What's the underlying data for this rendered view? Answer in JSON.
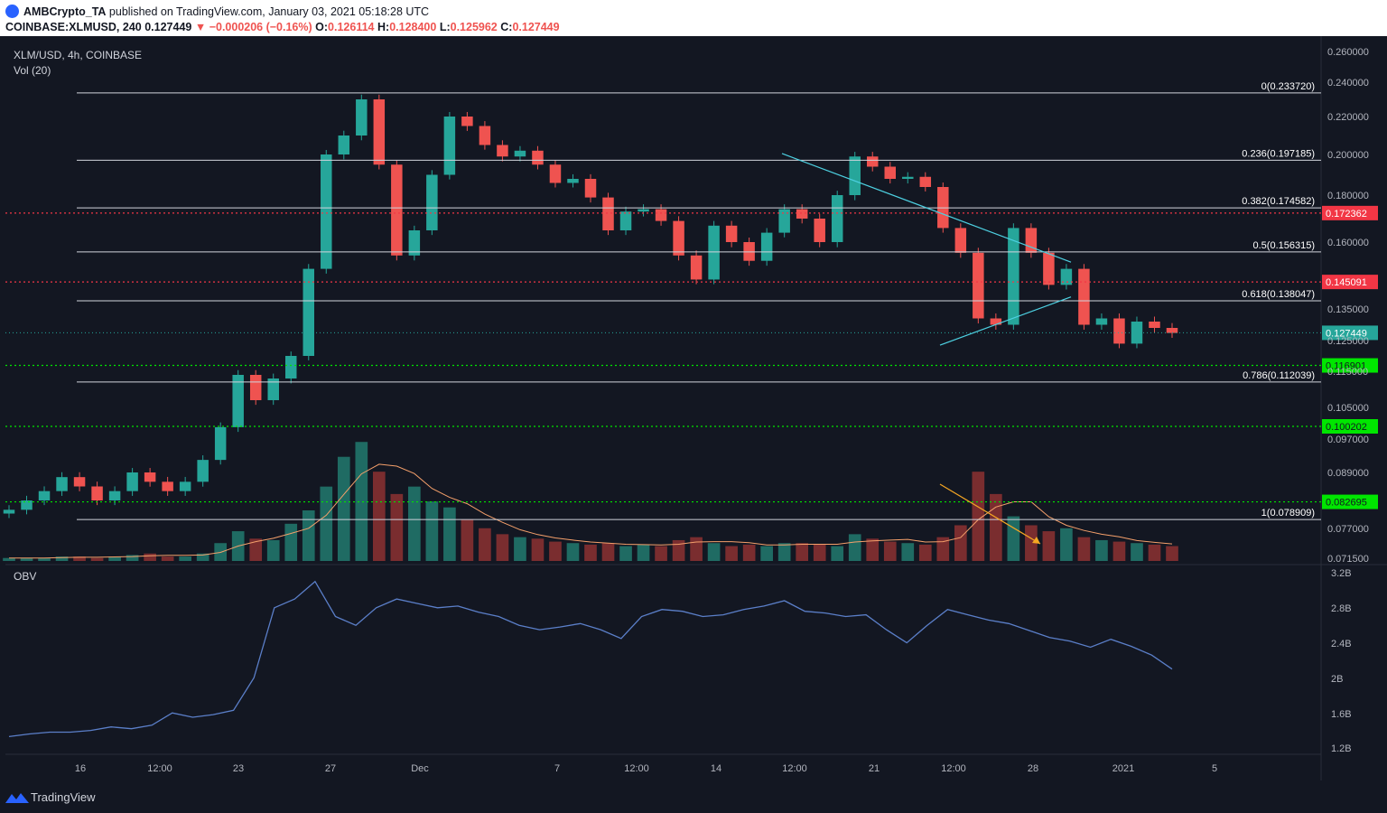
{
  "header": {
    "publisher": "AMBCrypto_TA",
    "published_text": "published on TradingView.com, January 03, 2021 05:18:28 UTC",
    "symbol": "COINBASE:XLMUSD, 240",
    "last": "0.127449",
    "change": "▼ −0.000206 (−0.16%)",
    "o_label": "O:",
    "o": "0.126114",
    "h_label": "H:",
    "h": "0.128400",
    "l_label": "L:",
    "l": "0.125962",
    "c_label": "C:",
    "c": "0.127449"
  },
  "legend": {
    "title": "XLM/USD, 4h, COINBASE",
    "vol": "Vol (20)",
    "obv": "OBV"
  },
  "footer": {
    "logo": "TradingView"
  },
  "colors": {
    "background": "#131722",
    "up": "#26a69a",
    "down": "#ef5350",
    "fib": "#d1d4dc",
    "resistance": "#f23645",
    "support": "#00e600",
    "triangle": "#4dd0e1",
    "arrow": "#f5a623",
    "obv_line": "#5b7fc9",
    "vol_ma": "#f5a06b"
  },
  "chart_data": [
    {
      "type": "candlestick",
      "title": "XLM/USD, 4h, COINBASE",
      "price_axis_ticks": [
        "0.260000",
        "0.240000",
        "0.220000",
        "0.200000",
        "0.180000",
        "0.160000",
        "0.135000",
        "0.125000",
        "0.115000",
        "0.105000",
        "0.097000",
        "0.089000",
        "0.077000",
        "0.071500"
      ],
      "x_axis_ticks": [
        "16",
        "12:00",
        "23",
        "27",
        "Dec",
        "7",
        "12:00",
        "14",
        "12:00",
        "21",
        "12:00",
        "28",
        "2021",
        "5"
      ],
      "fib_levels": [
        {
          "label": "0(0.233720)",
          "value": 0.23372
        },
        {
          "label": "0.236(0.197185)",
          "value": 0.197185
        },
        {
          "label": "0.382(0.174582)",
          "value": 0.174582
        },
        {
          "label": "0.5(0.156315)",
          "value": 0.156315
        },
        {
          "label": "0.618(0.138047)",
          "value": 0.138047
        },
        {
          "label": "0.786(0.112039)",
          "value": 0.112039
        },
        {
          "label": "1(0.078909)",
          "value": 0.078909
        }
      ],
      "horizontal_levels": [
        {
          "label": "0.172362",
          "value": 0.172362,
          "kind": "resistance"
        },
        {
          "label": "0.145091",
          "value": 0.145091,
          "kind": "resistance"
        },
        {
          "label": "0.116901",
          "value": 0.116901,
          "kind": "support"
        },
        {
          "label": "0.100202",
          "value": 0.100202,
          "kind": "support"
        },
        {
          "label": "0.082695",
          "value": 0.082695,
          "kind": "support"
        }
      ],
      "last_price": {
        "label": "0.127449",
        "value": 0.127449
      },
      "series_closes": [
        0.081,
        0.083,
        0.085,
        0.088,
        0.086,
        0.083,
        0.085,
        0.089,
        0.087,
        0.085,
        0.087,
        0.092,
        0.1,
        0.114,
        0.107,
        0.113,
        0.12,
        0.15,
        0.2,
        0.21,
        0.23,
        0.195,
        0.155,
        0.165,
        0.19,
        0.22,
        0.215,
        0.205,
        0.199,
        0.202,
        0.195,
        0.186,
        0.188,
        0.179,
        0.165,
        0.173,
        0.174,
        0.169,
        0.155,
        0.146,
        0.167,
        0.16,
        0.153,
        0.164,
        0.174,
        0.17,
        0.16,
        0.18,
        0.199,
        0.194,
        0.188,
        0.189,
        0.184,
        0.166,
        0.156,
        0.132,
        0.13,
        0.166,
        0.156,
        0.144,
        0.15,
        0.13,
        0.132,
        0.124,
        0.131,
        0.129,
        0.1274
      ]
    },
    {
      "type": "bar",
      "title": "Vol (20)",
      "series": [
        {
          "name": "Vol (20)",
          "values": [
            0.2,
            0.2,
            0.2,
            0.3,
            0.3,
            0.2,
            0.3,
            0.4,
            0.5,
            0.3,
            0.3,
            0.5,
            1.2,
            2.0,
            1.5,
            1.4,
            2.5,
            3.4,
            5.0,
            7.0,
            8.0,
            6.0,
            4.5,
            5.0,
            4.0,
            3.6,
            2.8,
            2.2,
            1.8,
            1.6,
            1.5,
            1.3,
            1.2,
            1.1,
            1.2,
            1.0,
            1.1,
            1.0,
            1.4,
            1.6,
            1.2,
            1.0,
            1.1,
            1.0,
            1.2,
            1.2,
            1.1,
            1.0,
            1.8,
            1.5,
            1.3,
            1.2,
            1.1,
            1.6,
            2.4,
            6.0,
            4.5,
            3.0,
            2.4,
            2.0,
            2.2,
            1.6,
            1.4,
            1.3,
            1.2,
            1.1,
            1.0
          ]
        }
      ]
    },
    {
      "type": "line",
      "title": "OBV",
      "y_axis_ticks": [
        "3.2B",
        "2.8B",
        "2.4B",
        "2B",
        "1.6B",
        "1.2B"
      ],
      "series": [
        {
          "name": "OBV",
          "values": [
            1.33,
            1.36,
            1.38,
            1.38,
            1.4,
            1.44,
            1.42,
            1.46,
            1.6,
            1.55,
            1.58,
            1.63,
            2.0,
            2.8,
            2.9,
            3.1,
            2.7,
            2.6,
            2.8,
            2.9,
            2.85,
            2.8,
            2.82,
            2.75,
            2.7,
            2.6,
            2.55,
            2.58,
            2.62,
            2.55,
            2.45,
            2.7,
            2.78,
            2.76,
            2.7,
            2.72,
            2.78,
            2.82,
            2.88,
            2.76,
            2.74,
            2.7,
            2.72,
            2.55,
            2.4,
            2.6,
            2.78,
            2.72,
            2.66,
            2.62,
            2.54,
            2.46,
            2.42,
            2.35,
            2.44,
            2.36,
            2.26,
            2.1
          ]
        }
      ]
    }
  ]
}
